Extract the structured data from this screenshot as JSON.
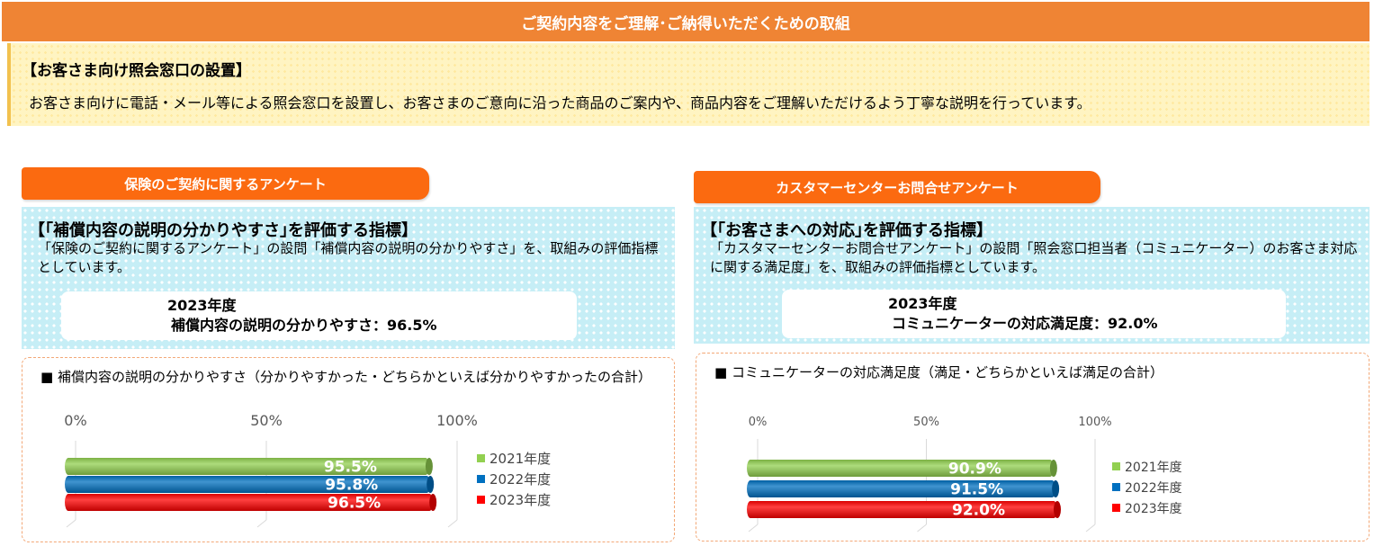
{
  "header": {
    "title": "ご契約内容をご理解･ご納得いただくための取組"
  },
  "intro": {
    "title": "【お客さま向け照会窓口の設置】",
    "body": "お客さま向けに電話・メール等による照会窓口を設置し、お客さまのご意向に沿った商品のご案内や、商品内容をご理解いただけるよう丁寧な説明を行っています。"
  },
  "panels": [
    {
      "tab": "保険のご契約に関するアンケート",
      "indicator_title": "【｢補償内容の説明の分かりやすさ｣を評価する指標】",
      "indicator_desc": "「保険のご契約に関するアンケート」の設問「補償内容の説明の分かりやすさ」を、取組みの評価指標としています。",
      "result_year": "2023年度",
      "result_line": "補償内容の説明の分かりやすさ：96.5%",
      "chart_title": "■ 補償内容の説明の分かりやすさ（分かりやすかった・どちらかといえば分かりやすかったの合計）"
    },
    {
      "tab": "カスタマーセンターお問合せアンケート",
      "indicator_title": "【｢お客さまへの対応｣を評価する指標】",
      "indicator_desc": "「カスタマーセンターお問合せアンケート」の設問「照会窓口担当者（コミュニケーター）のお客さま対応に関する満足度」を、取組みの評価指標としています。",
      "result_year": "2023年度",
      "result_line": "コミュニケーターの対応満足度：92.0%",
      "chart_title": "■ コミュニケーターの対応満足度（満足・どちらかといえば満足の合計）"
    }
  ],
  "colors": {
    "2021": "#92d050",
    "2022": "#0070c0",
    "2023": "#ff0000",
    "tab": "#fb6a10",
    "header": "#ef8434"
  },
  "chart_data": [
    {
      "type": "bar",
      "orientation": "horizontal",
      "title": "■ 補償内容の説明の分かりやすさ（分かりやすかった・どちらかといえば分かりやすかったの合計）",
      "xlim": [
        0,
        100
      ],
      "xticks": [
        "0%",
        "50%",
        "100%"
      ],
      "legend_position": "right",
      "series": [
        {
          "name": "2021年度",
          "value": 95.5,
          "label": "95.5%",
          "color": "#92d050"
        },
        {
          "name": "2022年度",
          "value": 95.8,
          "label": "95.8%",
          "color": "#0070c0"
        },
        {
          "name": "2023年度",
          "value": 96.5,
          "label": "96.5%",
          "color": "#ff0000"
        }
      ]
    },
    {
      "type": "bar",
      "orientation": "horizontal",
      "title": "■ コミュニケーターの対応満足度（満足・どちらかといえば満足の合計）",
      "xlim": [
        0,
        100
      ],
      "xticks": [
        "0%",
        "50%",
        "100%"
      ],
      "legend_position": "right",
      "series": [
        {
          "name": "2021年度",
          "value": 90.9,
          "label": "90.9%",
          "color": "#92d050"
        },
        {
          "name": "2022年度",
          "value": 91.5,
          "label": "91.5%",
          "color": "#0070c0"
        },
        {
          "name": "2023年度",
          "value": 92.0,
          "label": "92.0%",
          "color": "#ff0000"
        }
      ]
    }
  ]
}
